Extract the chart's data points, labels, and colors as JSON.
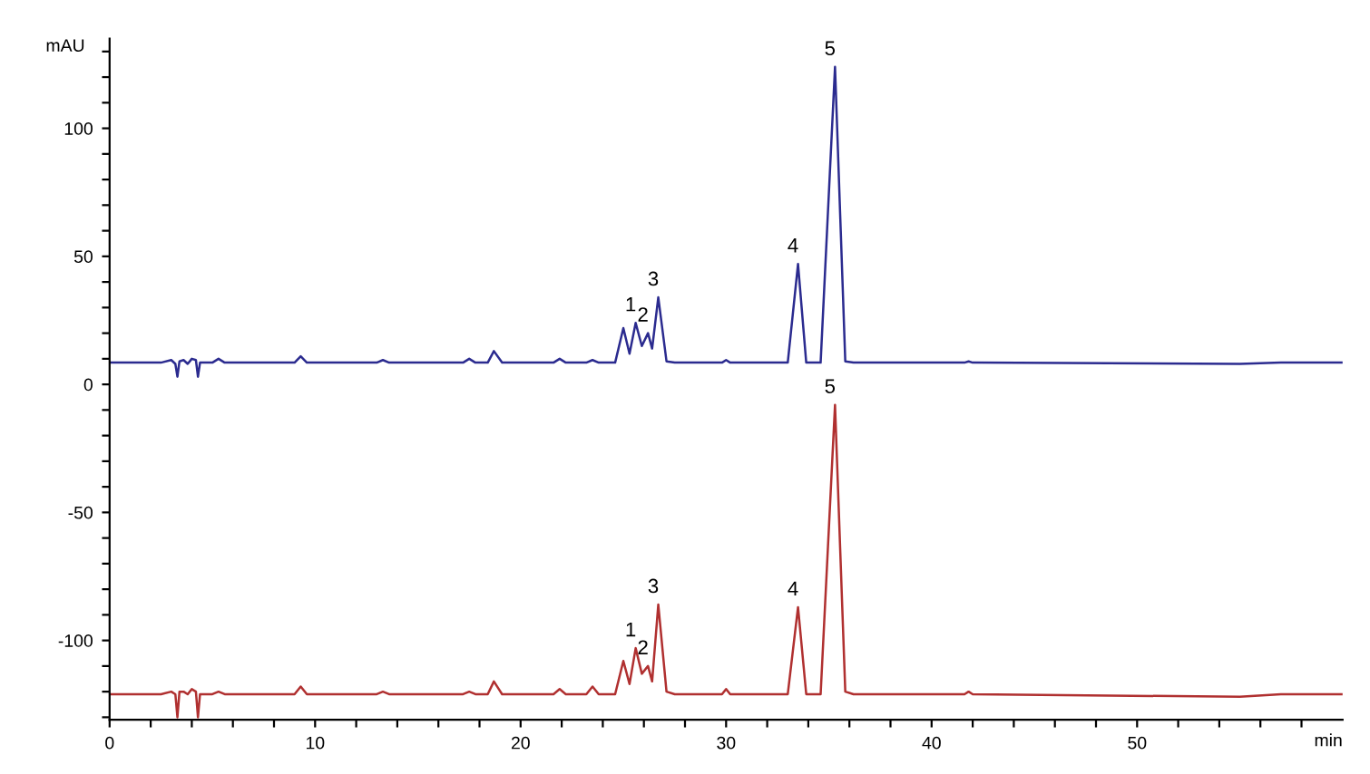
{
  "chart_data": {
    "type": "line",
    "xlabel": "min",
    "ylabel": "mAU",
    "xlim": [
      0,
      60
    ],
    "ylim": [
      -131,
      135
    ],
    "xticks": [
      0,
      {
        "value": 2,
        "label": null
      },
      {
        "value": 4,
        "label": null
      },
      {
        "value": 6,
        "label": null
      },
      {
        "value": 8,
        "label": null
      },
      10,
      {
        "value": 12,
        "label": null
      },
      {
        "value": 14,
        "label": null
      },
      {
        "value": 16,
        "label": null
      },
      {
        "value": 18,
        "label": null
      },
      20,
      {
        "value": 22,
        "label": null
      },
      {
        "value": 24,
        "label": null
      },
      {
        "value": 26,
        "label": null
      },
      {
        "value": 28,
        "label": null
      },
      30,
      {
        "value": 32,
        "label": null
      },
      {
        "value": 34,
        "label": null
      },
      {
        "value": 36,
        "label": null
      },
      {
        "value": 38,
        "label": null
      },
      40,
      {
        "value": 42,
        "label": null
      },
      {
        "value": 44,
        "label": null
      },
      {
        "value": 46,
        "label": null
      },
      {
        "value": 48,
        "label": null
      },
      50,
      {
        "value": 52,
        "label": null
      },
      {
        "value": 54,
        "label": null
      },
      {
        "value": 56,
        "label": null
      },
      {
        "value": 58,
        "label": null
      }
    ],
    "yticks": [
      {
        "value": -130,
        "label": null
      },
      {
        "value": -120,
        "label": null
      },
      {
        "value": -110,
        "label": null
      },
      -100,
      {
        "value": -90,
        "label": null
      },
      {
        "value": -80,
        "label": null
      },
      {
        "value": -70,
        "label": null
      },
      {
        "value": -60,
        "label": null
      },
      -50,
      {
        "value": -40,
        "label": null
      },
      {
        "value": -30,
        "label": null
      },
      {
        "value": -20,
        "label": null
      },
      {
        "value": -10,
        "label": null
      },
      0,
      {
        "value": 10,
        "label": null
      },
      {
        "value": 20,
        "label": null
      },
      {
        "value": 30,
        "label": null
      },
      {
        "value": 40,
        "label": null
      },
      50,
      {
        "value": 60,
        "label": null
      },
      {
        "value": 70,
        "label": null
      },
      {
        "value": 80,
        "label": null
      },
      {
        "value": 90,
        "label": null
      },
      100,
      {
        "value": 110,
        "label": null
      },
      {
        "value": 120,
        "label": null
      },
      {
        "value": 130,
        "label": null
      }
    ],
    "grid": false,
    "legend": false,
    "marker": "none",
    "line_style": "solid",
    "series": [
      {
        "color": "#2b2b8f",
        "x": [
          0,
          2.5,
          3.0,
          3.2,
          3.3,
          3.4,
          3.6,
          3.8,
          4.0,
          4.2,
          4.3,
          4.4,
          5.0,
          5.3,
          5.6,
          9.0,
          9.3,
          9.6,
          13.0,
          13.3,
          13.6,
          17.2,
          17.5,
          17.8,
          18.4,
          18.7,
          19.1,
          21.6,
          21.9,
          22.2,
          23.2,
          23.5,
          23.8,
          24.6,
          25.0,
          25.3,
          25.6,
          25.9,
          26.2,
          26.4,
          26.7,
          27.1,
          27.5,
          29.8,
          30.0,
          30.2,
          33.0,
          33.5,
          33.9,
          34.6,
          35.3,
          35.8,
          36.2,
          41.6,
          41.8,
          42.0,
          55.0,
          57.0,
          60.0
        ],
        "values": [
          8.5,
          8.5,
          9.5,
          8,
          3,
          9,
          9.5,
          8,
          10,
          9.5,
          3,
          8.5,
          8.5,
          10,
          8.5,
          8.5,
          11,
          8.5,
          8.5,
          9.5,
          8.5,
          8.5,
          10,
          8.5,
          8.5,
          13,
          8.5,
          8.5,
          10,
          8.5,
          8.5,
          9.5,
          8.5,
          8.5,
          22,
          12,
          24,
          15,
          20,
          14,
          34,
          9,
          8.5,
          8.5,
          9.5,
          8.5,
          8.5,
          47,
          8.5,
          8.5,
          124,
          9,
          8.5,
          8.5,
          9,
          8.5,
          8,
          8.5,
          8.5
        ]
      },
      {
        "color": "#b03030",
        "x": [
          0,
          2.5,
          3.0,
          3.2,
          3.3,
          3.4,
          3.6,
          3.8,
          4.0,
          4.2,
          4.3,
          4.4,
          5.0,
          5.3,
          5.6,
          9.0,
          9.3,
          9.6,
          13.0,
          13.3,
          13.6,
          17.2,
          17.5,
          17.8,
          18.4,
          18.7,
          19.1,
          21.6,
          21.9,
          22.2,
          23.2,
          23.5,
          23.8,
          24.6,
          25.0,
          25.3,
          25.6,
          25.9,
          26.2,
          26.4,
          26.7,
          27.1,
          27.5,
          29.8,
          30.0,
          30.2,
          33.0,
          33.5,
          33.9,
          34.6,
          35.3,
          35.8,
          36.2,
          41.6,
          41.8,
          42.0,
          55.0,
          57.0,
          60.0
        ],
        "values": [
          -121,
          -121,
          -120,
          -121,
          -130,
          -120,
          -120,
          -121,
          -119,
          -120,
          -130,
          -121,
          -121,
          -120,
          -121,
          -121,
          -118,
          -121,
          -121,
          -120,
          -121,
          -121,
          -120,
          -121,
          -121,
          -116,
          -121,
          -121,
          -119,
          -121,
          -121,
          -118,
          -121,
          -121,
          -108,
          -117,
          -103,
          -113,
          -110,
          -116,
          -86,
          -120,
          -121,
          -121,
          -119,
          -121,
          -121,
          -87,
          -121,
          -121,
          -8,
          -120,
          -121,
          -121,
          -120,
          -121,
          -122,
          -121,
          -121
        ]
      }
    ],
    "annotations": [
      {
        "text": "1",
        "x": 25.6,
        "y": 24
      },
      {
        "text": "2",
        "x": 26.2,
        "y": 20
      },
      {
        "text": "3",
        "x": 26.7,
        "y": 34
      },
      {
        "text": "4",
        "x": 33.5,
        "y": 47
      },
      {
        "text": "5",
        "x": 35.3,
        "y": 124
      },
      {
        "text": "1",
        "x": 25.6,
        "y": -103
      },
      {
        "text": "2",
        "x": 26.2,
        "y": -110
      },
      {
        "text": "3",
        "x": 26.7,
        "y": -86
      },
      {
        "text": "4",
        "x": 33.5,
        "y": -87
      },
      {
        "text": "5",
        "x": 35.3,
        "y": -8
      }
    ]
  }
}
